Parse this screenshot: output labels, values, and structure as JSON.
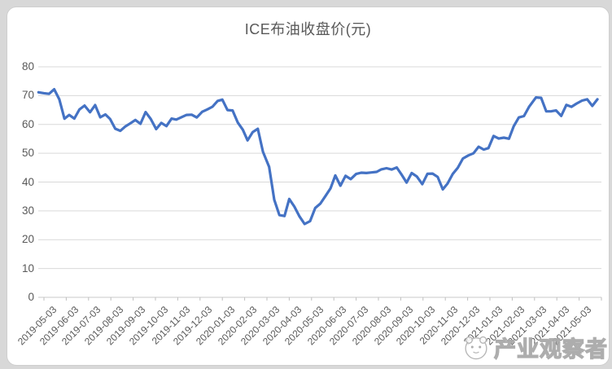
{
  "watermark": {
    "text": "产业观察者"
  },
  "colors": {
    "line": "#4472C4",
    "grid": "#d9d9d9",
    "axis_line": "#c9c9c9",
    "tick": "#bfbfbf",
    "axis_text": "#595959",
    "title_text": "#595959",
    "background": "#ffffff",
    "surround": "#d8d8d8"
  },
  "chart_data": {
    "type": "line",
    "title": "ICE布油收盘价(元)",
    "xlabel": "",
    "ylabel": "",
    "ylim": [
      0,
      80
    ],
    "grid": true,
    "legend_position": "none",
    "y_ticks": [
      0,
      10,
      20,
      30,
      40,
      50,
      60,
      70,
      80
    ],
    "x_tick_labels": [
      "2019-05-03",
      "2019-06-03",
      "2019-07-03",
      "2019-08-03",
      "2019-09-03",
      "2019-10-03",
      "2019-11-03",
      "2019-12-03",
      "2020-01-03",
      "2020-02-03",
      "2020-03-03",
      "2020-04-03",
      "2020-05-03",
      "2020-06-03",
      "2020-07-03",
      "2020-08-03",
      "2020-09-03",
      "2020-10-03",
      "2020-11-03",
      "2020-12-03",
      "2021-01-03",
      "2021-02-03",
      "2021-03-03",
      "2021-04-03",
      "2021-05-03"
    ],
    "series": [
      {
        "name": "ICE布油收盘价(元)",
        "color": "#4472C4",
        "x": [
          "2019-04-26",
          "2019-05-03",
          "2019-05-10",
          "2019-05-17",
          "2019-05-24",
          "2019-05-31",
          "2019-06-07",
          "2019-06-14",
          "2019-06-21",
          "2019-06-28",
          "2019-07-05",
          "2019-07-12",
          "2019-07-19",
          "2019-07-26",
          "2019-08-02",
          "2019-08-09",
          "2019-08-16",
          "2019-08-23",
          "2019-08-30",
          "2019-09-06",
          "2019-09-13",
          "2019-09-20",
          "2019-09-27",
          "2019-10-04",
          "2019-10-11",
          "2019-10-18",
          "2019-10-25",
          "2019-11-01",
          "2019-11-08",
          "2019-11-15",
          "2019-11-22",
          "2019-11-29",
          "2019-12-06",
          "2019-12-13",
          "2019-12-20",
          "2019-12-27",
          "2020-01-03",
          "2020-01-10",
          "2020-01-17",
          "2020-01-24",
          "2020-01-31",
          "2020-02-07",
          "2020-02-14",
          "2020-02-21",
          "2020-02-28",
          "2020-03-06",
          "2020-03-13",
          "2020-03-20",
          "2020-03-27",
          "2020-04-03",
          "2020-04-10",
          "2020-04-17",
          "2020-04-24",
          "2020-05-01",
          "2020-05-08",
          "2020-05-15",
          "2020-05-22",
          "2020-05-29",
          "2020-06-05",
          "2020-06-12",
          "2020-06-19",
          "2020-06-26",
          "2020-07-03",
          "2020-07-10",
          "2020-07-17",
          "2020-07-24",
          "2020-07-31",
          "2020-08-07",
          "2020-08-14",
          "2020-08-21",
          "2020-08-28",
          "2020-09-04",
          "2020-09-11",
          "2020-09-18",
          "2020-09-25",
          "2020-10-02",
          "2020-10-09",
          "2020-10-16",
          "2020-10-23",
          "2020-10-30",
          "2020-11-06",
          "2020-11-13",
          "2020-11-20",
          "2020-11-27",
          "2020-12-04",
          "2020-12-11",
          "2020-12-18",
          "2020-12-25",
          "2021-01-01",
          "2021-01-08",
          "2021-01-15",
          "2021-01-22",
          "2021-01-29",
          "2021-02-05",
          "2021-02-12",
          "2021-02-19",
          "2021-02-26",
          "2021-03-05",
          "2021-03-12",
          "2021-03-19",
          "2021-03-26",
          "2021-04-02",
          "2021-04-09",
          "2021-04-16",
          "2021-04-23",
          "2021-04-30",
          "2021-05-07",
          "2021-05-14",
          "2021-05-21",
          "2021-05-28"
        ],
        "values": [
          71.15,
          70.85,
          70.62,
          72.21,
          68.69,
          61.99,
          63.29,
          62.01,
          65.2,
          66.55,
          64.23,
          66.72,
          62.47,
          63.46,
          61.89,
          58.53,
          57.77,
          59.34,
          60.43,
          61.54,
          60.22,
          64.28,
          61.91,
          58.37,
          60.51,
          59.42,
          62.02,
          61.69,
          62.51,
          63.3,
          63.39,
          62.43,
          64.39,
          65.22,
          66.14,
          68.16,
          68.6,
          64.98,
          64.85,
          60.69,
          58.16,
          54.47,
          57.32,
          58.5,
          50.52,
          45.27,
          33.85,
          28.55,
          28.21,
          34.11,
          31.48,
          28.08,
          25.44,
          26.44,
          30.97,
          32.5,
          35.13,
          37.84,
          42.3,
          38.73,
          42.19,
          41.02,
          42.8,
          43.24,
          43.14,
          43.34,
          43.52,
          44.4,
          44.8,
          44.35,
          45.05,
          42.66,
          39.83,
          43.15,
          41.92,
          39.27,
          42.85,
          42.93,
          41.77,
          37.46,
          39.45,
          42.78,
          44.96,
          48.18,
          49.25,
          49.97,
          52.26,
          51.29,
          51.8,
          55.99,
          55.1,
          55.41,
          55.04,
          59.34,
          62.43,
          62.91,
          66.13,
          69.36,
          69.22,
          64.53,
          64.57,
          64.86,
          62.95,
          66.77,
          66.11,
          67.25,
          68.28,
          68.71,
          66.44,
          68.72
        ]
      }
    ]
  }
}
